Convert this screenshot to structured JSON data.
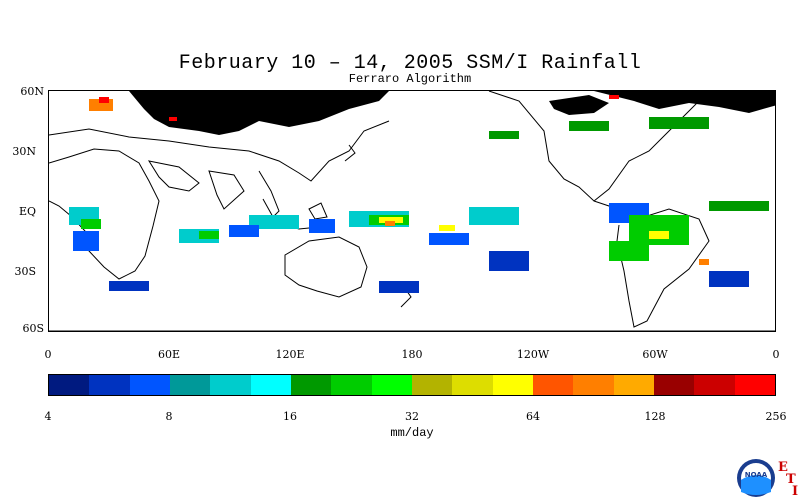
{
  "header": {
    "title": "February 10 – 14, 2005 SSM/I Rainfall",
    "subtitle": "Ferraro Algorithm"
  },
  "map": {
    "latitude_labels": [
      "60N",
      "30N",
      "EQ",
      "30S",
      "60S"
    ],
    "longitude_labels": [
      "0",
      "60E",
      "120E",
      "180",
      "120W",
      "60W",
      "0"
    ],
    "land_outline_color": "#000000",
    "ice_mask_color": "#000000",
    "ocean_color": "#ffffff"
  },
  "colorbar": {
    "colors": [
      "#001a80",
      "#0033c0",
      "#0055ff",
      "#009999",
      "#00cccc",
      "#00ffff",
      "#009900",
      "#00cc00",
      "#00ff00",
      "#b3b300",
      "#dddd00",
      "#ffff00",
      "#ff5500",
      "#ff7f00",
      "#ffaa00",
      "#990000",
      "#cc0000",
      "#ff0000"
    ],
    "tick_labels": [
      "4",
      "8",
      "16",
      "32",
      "64",
      "128",
      "256"
    ],
    "units": "mm/day"
  },
  "logo": {
    "name": "NOAA",
    "letters": [
      "E",
      "T",
      "I"
    ]
  }
}
